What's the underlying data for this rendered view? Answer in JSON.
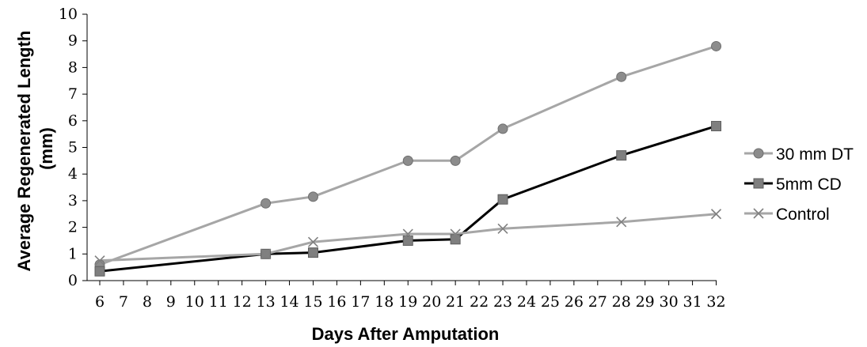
{
  "chart_data": {
    "type": "line",
    "title": "",
    "xlabel": "Days After Amputation",
    "ylabel_lines": [
      "Average Regenerated Length",
      "(mm)"
    ],
    "x_ticks": [
      6,
      7,
      8,
      9,
      10,
      11,
      12,
      13,
      14,
      15,
      16,
      17,
      18,
      19,
      20,
      21,
      22,
      23,
      24,
      25,
      26,
      27,
      28,
      29,
      30,
      31,
      32
    ],
    "xlim": [
      6,
      32
    ],
    "ylim": [
      0,
      10
    ],
    "y_ticks": [
      0,
      1,
      2,
      3,
      4,
      5,
      6,
      7,
      8,
      9,
      10
    ],
    "grid": false,
    "legend_position": "right",
    "series": [
      {
        "name": "30 mm DT",
        "marker": "circle",
        "color": "#a6a6a6",
        "marker_color": "#8c8c8c",
        "points": [
          [
            6,
            0.6
          ],
          [
            13,
            2.9
          ],
          [
            15,
            3.15
          ],
          [
            19,
            4.5
          ],
          [
            21,
            4.5
          ],
          [
            23,
            5.7
          ],
          [
            28,
            7.65
          ],
          [
            32,
            8.8
          ]
        ]
      },
      {
        "name": "5mm CD",
        "marker": "square",
        "color": "#000000",
        "marker_color": "#7f7f7f",
        "points": [
          [
            6,
            0.35
          ],
          [
            13,
            1.0
          ],
          [
            15,
            1.05
          ],
          [
            19,
            1.5
          ],
          [
            21,
            1.55
          ],
          [
            23,
            3.05
          ],
          [
            28,
            4.7
          ],
          [
            32,
            5.8
          ]
        ]
      },
      {
        "name": "Control",
        "marker": "x",
        "color": "#a6a6a6",
        "marker_color": "#808080",
        "points": [
          [
            6,
            0.75
          ],
          [
            13,
            1.0
          ],
          [
            15,
            1.45
          ],
          [
            19,
            1.75
          ],
          [
            21,
            1.75
          ],
          [
            23,
            1.95
          ],
          [
            28,
            2.2
          ],
          [
            32,
            2.5
          ]
        ]
      }
    ]
  }
}
